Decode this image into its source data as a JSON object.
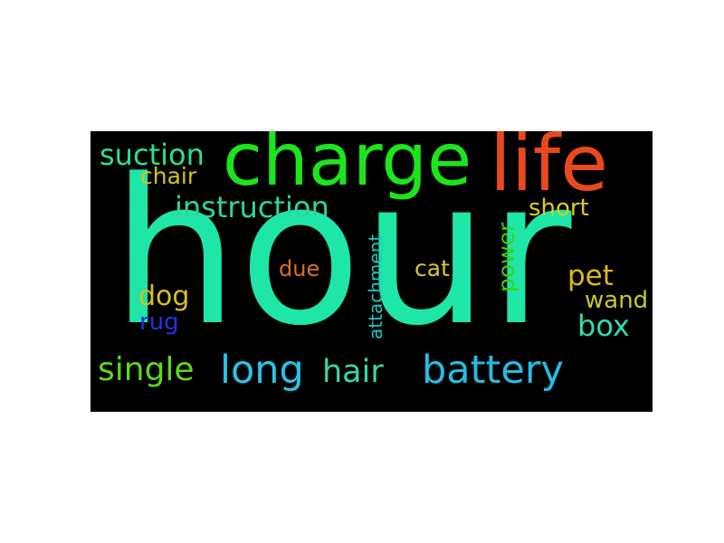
{
  "word_cloud": {
    "background_color": "#000000",
    "words": [
      {
        "id": "hour",
        "text": "hour",
        "color": "#1ee6a8"
      },
      {
        "id": "charge",
        "text": "charge",
        "color": "#1be51b"
      },
      {
        "id": "life",
        "text": "life",
        "color": "#e8491d"
      },
      {
        "id": "suction",
        "text": "suction",
        "color": "#2be08a"
      },
      {
        "id": "chair",
        "text": "chair",
        "color": "#d6c41c"
      },
      {
        "id": "instruction",
        "text": "instruction",
        "color": "#2ed59a"
      },
      {
        "id": "short",
        "text": "short",
        "color": "#dccb22"
      },
      {
        "id": "power",
        "text": "power",
        "color": "#39d117"
      },
      {
        "id": "attachment",
        "text": "attachment",
        "color": "#21c8c4"
      },
      {
        "id": "due",
        "text": "due",
        "color": "#d9721d"
      },
      {
        "id": "cat",
        "text": "cat",
        "color": "#d9c82a"
      },
      {
        "id": "pet",
        "text": "pet",
        "color": "#dcb61e"
      },
      {
        "id": "dog",
        "text": "dog",
        "color": "#d6c022"
      },
      {
        "id": "wand",
        "text": "wand",
        "color": "#c8c82a"
      },
      {
        "id": "rug",
        "text": "rug",
        "color": "#2632d6"
      },
      {
        "id": "box",
        "text": "box",
        "color": "#2fdbb0"
      },
      {
        "id": "single",
        "text": "single",
        "color": "#5bd818"
      },
      {
        "id": "long",
        "text": "long",
        "color": "#27c3e6"
      },
      {
        "id": "hair",
        "text": "hair",
        "color": "#38d6a8"
      },
      {
        "id": "battery",
        "text": "battery",
        "color": "#24bde0"
      }
    ]
  }
}
